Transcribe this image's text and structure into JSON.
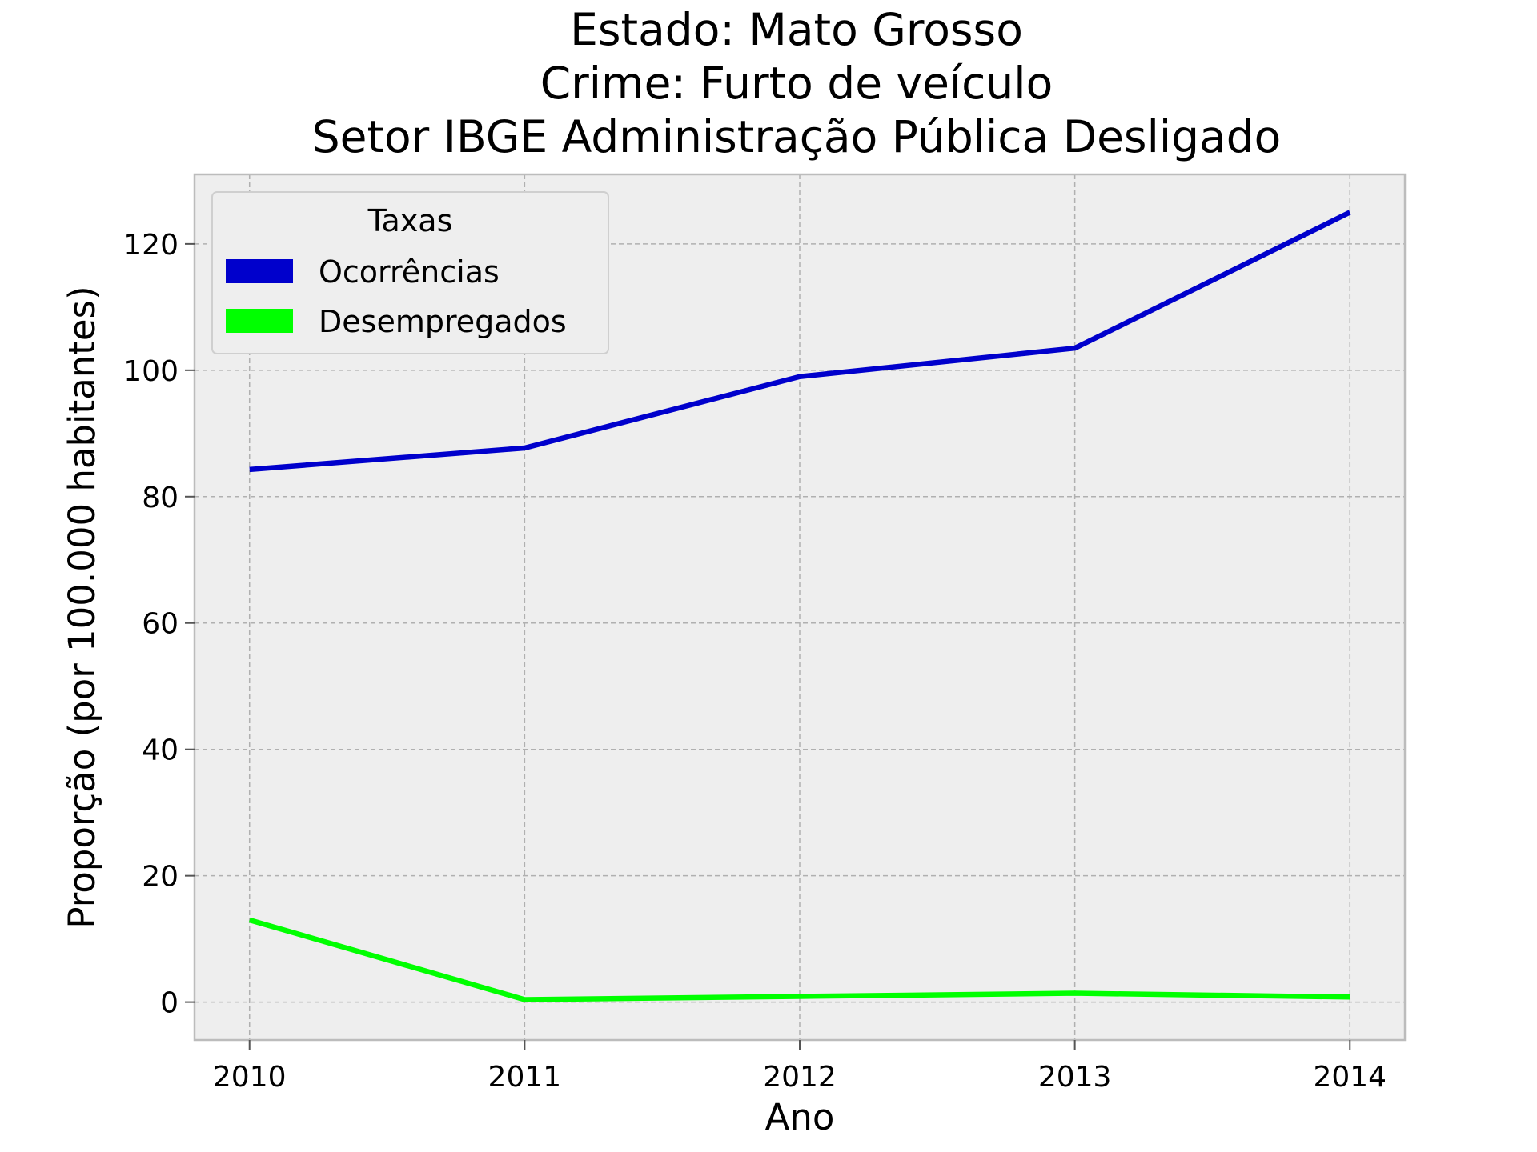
{
  "chart_data": {
    "type": "line",
    "title_lines": [
      "Estado: Mato Grosso",
      "Crime: Furto de veículo",
      "Setor IBGE  Administração Pública   Desligado"
    ],
    "xlabel": "Ano",
    "ylabel": "Proporção (por 100.000 habitantes)",
    "x": [
      2010,
      2011,
      2012,
      2013,
      2014
    ],
    "xticks": [
      "2010",
      "2011",
      "2012",
      "2013",
      "2014"
    ],
    "yticks": [
      "0",
      "20",
      "40",
      "60",
      "80",
      "100",
      "120"
    ],
    "ylim": [
      -6,
      131
    ],
    "xlim": [
      2009.8,
      2014.2
    ],
    "grid": true,
    "legend": {
      "title": "Taxas",
      "placement": "top-left"
    },
    "series": [
      {
        "name": "Ocorrências",
        "color": "#0000cc",
        "values": [
          84.3,
          87.7,
          99.0,
          103.5,
          125.0
        ]
      },
      {
        "name": "Desempregados",
        "color": "#00ff00",
        "values": [
          13.0,
          0.4,
          0.9,
          1.4,
          0.8
        ]
      }
    ]
  }
}
